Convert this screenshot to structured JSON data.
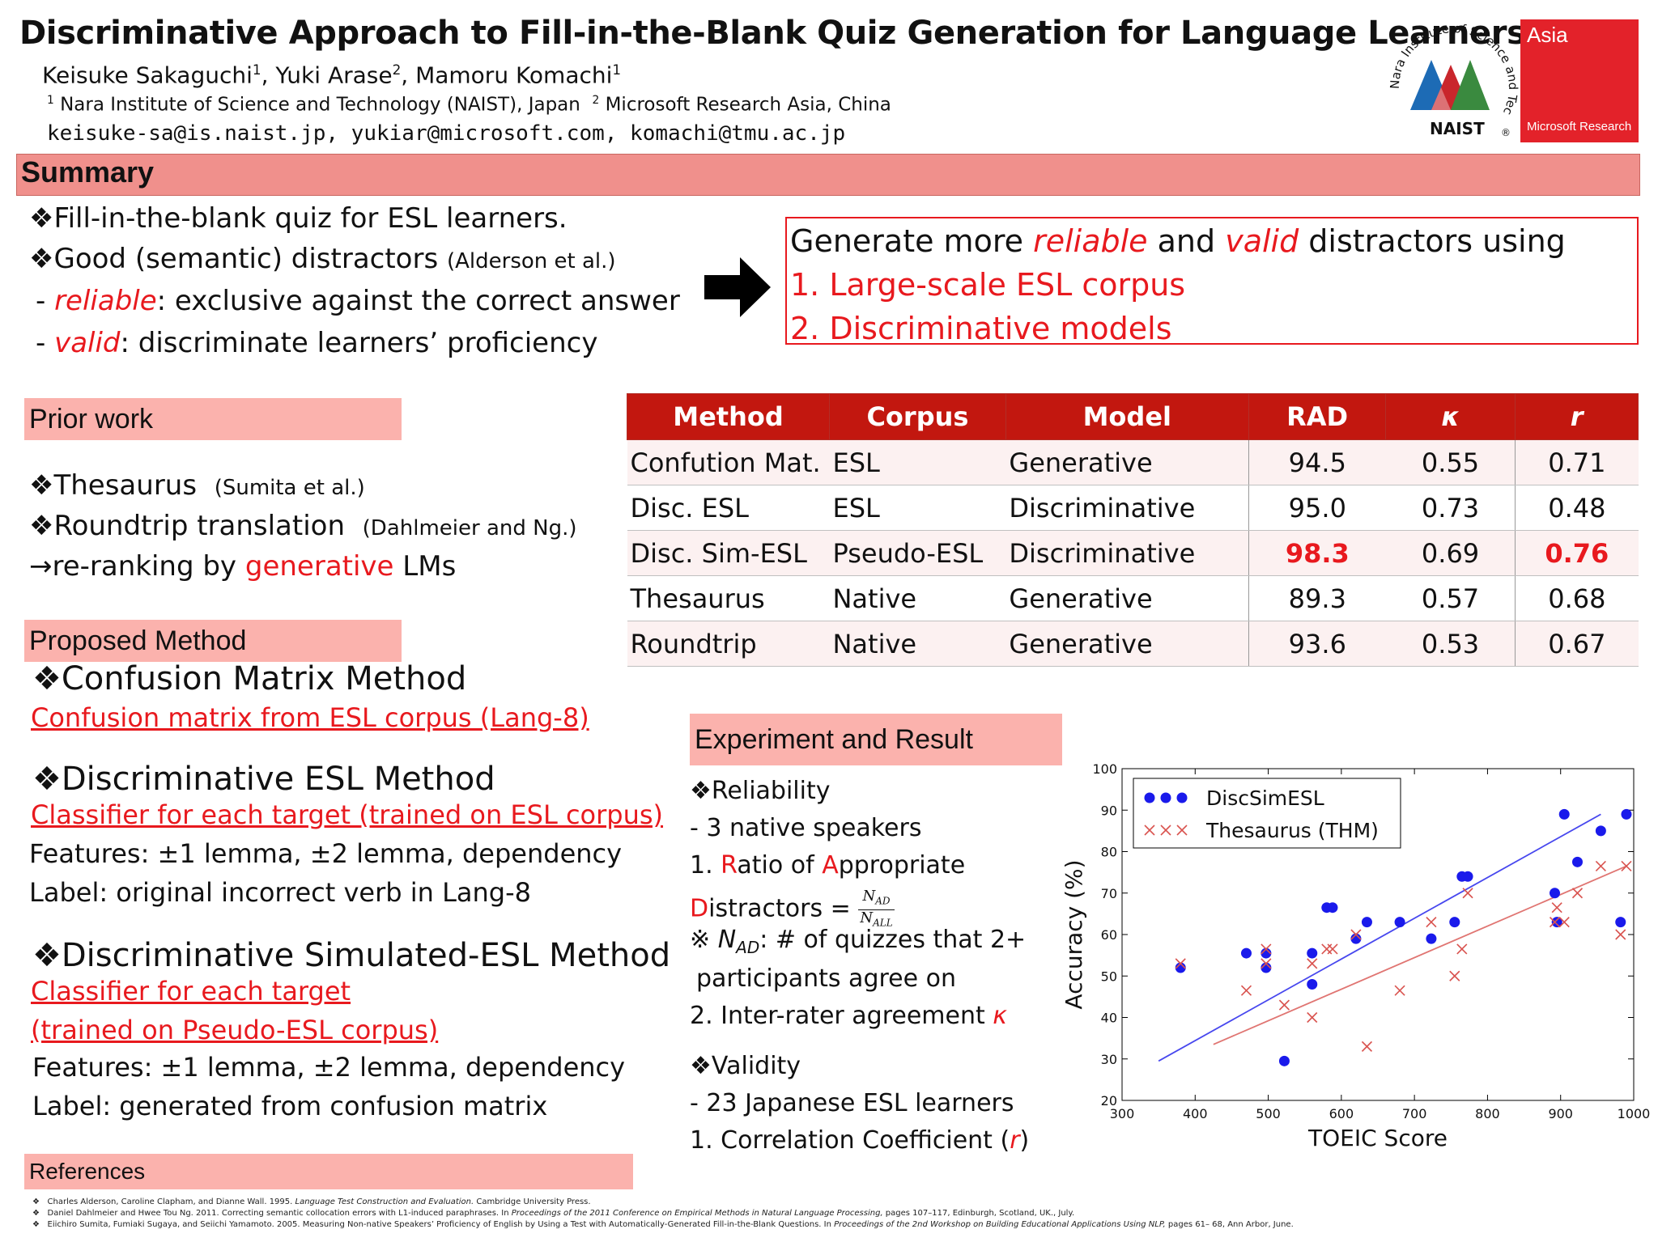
{
  "header": {
    "title": "Discriminative Approach to Fill-in-the-Blank Quiz Generation for Language Learners",
    "authors": [
      {
        "name": "Keisuke Sakaguchi",
        "sup": "1"
      },
      {
        "name": "Yuki Arase",
        "sup": "2"
      },
      {
        "name": "Mamoru Komachi",
        "sup": "1"
      }
    ],
    "affiliations": [
      {
        "sup": "1",
        "text": "Nara Institute of Science and Technology (NAIST), Japan"
      },
      {
        "sup": "2",
        "text": "Microsoft Research Asia, China"
      }
    ],
    "emails": "keisuke-sa@is.naist.jp, yukiar@microsoft.com, komachi@tmu.ac.jp",
    "logos": {
      "naist_ring": "Nara Institute of Science and Technology",
      "naist_word": "NAIST",
      "naist_reg": "®",
      "msr_top": "Asia",
      "msr_bottom": "Microsoft Research"
    }
  },
  "summary": {
    "heading": "Summary",
    "bullet_glyph": "❖",
    "line1": "Fill-in-the-blank quiz for ESL learners.",
    "line2_main": "Good (semantic) distractors",
    "line2_cite": "(Alderson et al.)",
    "line3_dash": "- ",
    "line3_key": "reliable",
    "line3_rest": ": exclusive against the correct answer",
    "line4_dash": "- ",
    "line4_key": "valid",
    "line4_rest": ": discriminate learners’ proficiency",
    "box": {
      "p1": "Generate more ",
      "k1": "reliable",
      "p2": " and ",
      "k2": "valid",
      "p3": " distractors using",
      "item1": "1. Large-scale ESL corpus",
      "item2": "2. Discriminative models"
    }
  },
  "prior_work": {
    "heading": "Prior work",
    "item1": "Thesaurus",
    "item1_cite": "(Sumita et al.)",
    "item2": "Roundtrip translation",
    "item2_cite": "(Dahlmeier and Ng.)",
    "rerank_arrow": "→",
    "rerank_pre": "re-ranking by ",
    "rerank_key": "generative",
    "rerank_post": " LMs"
  },
  "proposed": {
    "heading": "Proposed Method",
    "m1_title": "Confusion Matrix Method",
    "m1_sub": "Confusion matrix from ESL corpus (Lang-8)",
    "m2_title": "Discriminative ESL Method",
    "m2_sub": "Classifier for each target (trained on ESL corpus)",
    "m2_features": "Features: ±1 lemma, ±2 lemma, dependency",
    "m2_label": "Label: original incorrect verb in Lang-8",
    "m3_title": "Discriminative Simulated-ESL Method",
    "m3_sub1": "Classifier for each target",
    "m3_sub2": "(trained on Pseudo-ESL corpus)",
    "m3_features": "Features: ±1 lemma, ±2 lemma, dependency",
    "m3_label": "Label: generated from confusion matrix"
  },
  "results_table": {
    "headers": [
      "Method",
      "Corpus",
      "Model",
      "RAD",
      "κ",
      "r"
    ],
    "rows": [
      [
        "Confution Mat.",
        "ESL",
        "Generative",
        "94.5",
        "0.55",
        "0.71"
      ],
      [
        "Disc. ESL",
        "ESL",
        "Discriminative",
        "95.0",
        "0.73",
        "0.48"
      ],
      [
        "Disc. Sim-ESL",
        "Pseudo-ESL",
        "Discriminative",
        "98.3",
        "0.69",
        "0.76"
      ],
      [
        "Thesaurus",
        "Native",
        "Generative",
        "89.3",
        "0.57",
        "0.68"
      ],
      [
        "Roundtrip",
        "Native",
        "Generative",
        "93.6",
        "0.53",
        "0.67"
      ]
    ],
    "best_highlight_color": "#e8191e"
  },
  "experiment": {
    "heading": "Experiment and Result",
    "reliability": "Reliability",
    "natives": "- 3 native speakers",
    "rad_1": "1. ",
    "rad_R": "R",
    "rad_2": "atio of ",
    "rad_A": "A",
    "rad_3": "ppropriate",
    "rad_D": "D",
    "rad_4": "istractors = ",
    "frac_num_N": "N",
    "frac_num_sub": "AD",
    "frac_den_N": "N",
    "frac_den_sub": "ALL",
    "note_mark": "※ ",
    "note_N": "N",
    "note_sub": "AD",
    "note_rest": ": # of quizzes that 2+",
    "note_line2": "participants agree on",
    "kappa_pre": "2. Inter-rater agreement ",
    "kappa_sym": "κ",
    "validity": "Validity",
    "learners": "- 23 Japanese ESL learners",
    "corr_pre": "1. Correlation Coefficient (",
    "corr_sym": "r",
    "corr_post": ")"
  },
  "chart_data": {
    "type": "scatter",
    "xlabel": "TOEIC Score",
    "ylabel": "Accuracy (%)",
    "xlim": [
      300,
      1000
    ],
    "ylim": [
      20,
      100
    ],
    "xticks": [
      "300",
      "400",
      "500",
      "600",
      "700",
      "800",
      "900",
      "1000"
    ],
    "yticks": [
      "20",
      "30",
      "40",
      "50",
      "60",
      "70",
      "80",
      "90",
      "100"
    ],
    "legend_position": "top-left",
    "series": [
      {
        "name": "DiscSimESL",
        "marker": "dot",
        "color": "#1a1aeb",
        "points": [
          [
            380,
            52
          ],
          [
            470,
            55.5
          ],
          [
            497,
            55.5
          ],
          [
            497,
            52
          ],
          [
            522,
            29.5
          ],
          [
            560,
            48
          ],
          [
            560,
            55.5
          ],
          [
            580,
            66.5
          ],
          [
            588,
            66.5
          ],
          [
            620,
            59
          ],
          [
            635,
            63
          ],
          [
            680,
            63
          ],
          [
            723,
            59
          ],
          [
            755,
            63
          ],
          [
            765,
            74
          ],
          [
            773,
            74
          ],
          [
            892,
            70
          ],
          [
            895,
            63
          ],
          [
            905,
            89
          ],
          [
            923,
            77.5
          ],
          [
            955,
            85
          ],
          [
            982,
            63
          ],
          [
            990,
            89
          ]
        ],
        "fit": [
          [
            350,
            29.5
          ],
          [
            955,
            89
          ]
        ]
      },
      {
        "name": "Thesaurus (THM)",
        "marker": "x",
        "color": "#d9534f",
        "points": [
          [
            380,
            53
          ],
          [
            470,
            46.5
          ],
          [
            497,
            53
          ],
          [
            497,
            56.5
          ],
          [
            522,
            43
          ],
          [
            560,
            53
          ],
          [
            560,
            40
          ],
          [
            580,
            56.5
          ],
          [
            588,
            56.5
          ],
          [
            620,
            60
          ],
          [
            635,
            33
          ],
          [
            680,
            46.5
          ],
          [
            723,
            63
          ],
          [
            755,
            50
          ],
          [
            765,
            56.5
          ],
          [
            773,
            70
          ],
          [
            892,
            63
          ],
          [
            895,
            66.5
          ],
          [
            905,
            63
          ],
          [
            923,
            70
          ],
          [
            955,
            76.5
          ],
          [
            982,
            60
          ],
          [
            990,
            76.5
          ]
        ],
        "fit": [
          [
            425,
            33.5
          ],
          [
            990,
            76.5
          ]
        ]
      }
    ]
  },
  "references": {
    "heading": "References",
    "bullet": "❖",
    "items": [
      {
        "pre": "Charles Alderson, Caroline Clapham, and Dianne Wall. 1995. ",
        "ital": "Language Test Construction and Evaluation.",
        "post": " Cambridge University Press."
      },
      {
        "pre": "Daniel Dahlmeier and Hwee Tou Ng. 2011. Correcting semantic collocation errors with L1-induced paraphrases. In ",
        "ital": "Proceedings of the 2011 Conference on Empirical Methods in Natural Language Processing,",
        "post": " pages 107–117, Edinburgh, Scotland, UK., July."
      },
      {
        "pre": "Eiichiro Sumita, Fumiaki Sugaya, and Seiichi Yamamoto. 2005. Measuring Non-native Speakers’ Proficiency of English by Using a Test with Automatically-Generated Fill-in-the-Blank Questions. In ",
        "ital": "Proceedings of the 2nd Workshop on Building Educational Applications Using NLP,",
        "post": " pages 61– 68, Ann Arbor, June."
      }
    ]
  }
}
